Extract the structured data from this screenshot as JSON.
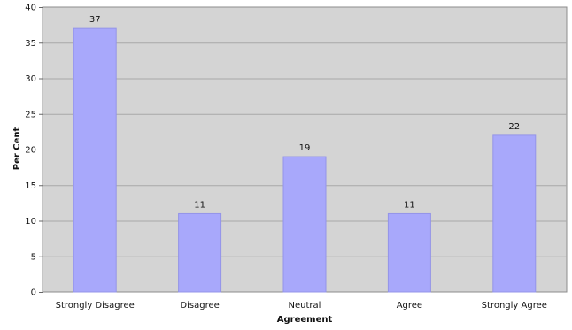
{
  "chart_data": {
    "type": "bar",
    "title": "",
    "xlabel": "Agreement",
    "ylabel": "Per Cent",
    "categories": [
      "Strongly Disagree",
      "Disagree",
      "Neutral",
      "Agree",
      "Strongly Agree"
    ],
    "values": [
      37,
      11,
      19,
      11,
      22
    ],
    "ylim": [
      0,
      40
    ],
    "yticks": [
      0,
      5,
      10,
      15,
      20,
      25,
      30,
      35,
      40
    ],
    "grid": true,
    "legend": "none",
    "colors": {
      "bar": "#a8a8fb",
      "bar_edge": "#9494e8",
      "plot_background": "#d4d4d4",
      "gridline": "#a8a8a8"
    }
  }
}
